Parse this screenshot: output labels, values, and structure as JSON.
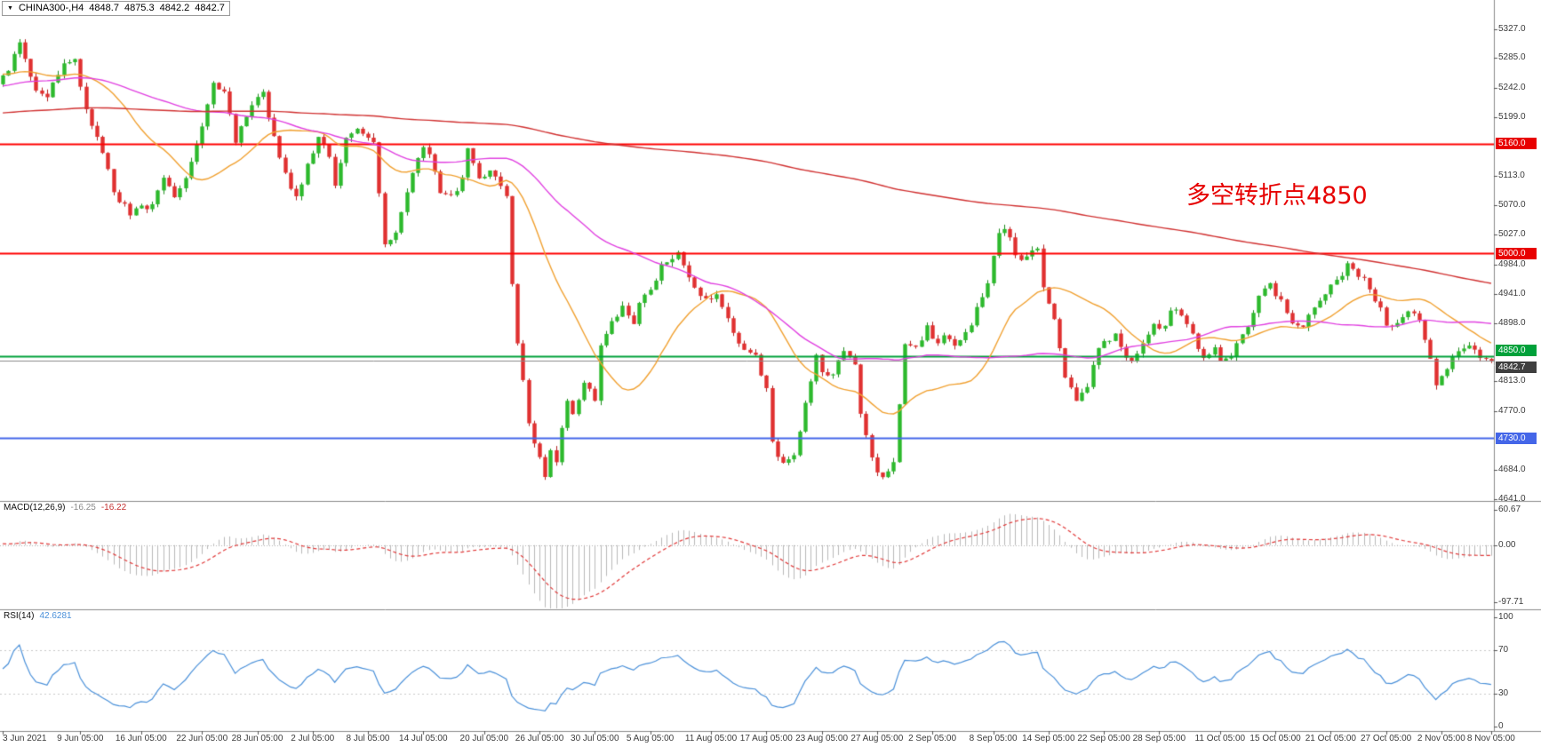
{
  "header": {
    "collapse_icon": "▼",
    "symbol": "CHINA300-,H4",
    "open": "4848.7",
    "high": "4875.3",
    "low": "4842.2",
    "close": "4842.7"
  },
  "annotation": {
    "text": "多空转折点4850",
    "color": "#e60000"
  },
  "chart_data": {
    "type": "candlestick",
    "symbol": "CHINA300-",
    "timeframe": "H4",
    "ohlc_display": {
      "open": 4848.7,
      "high": 4875.3,
      "low": 4842.2,
      "close": 4842.7
    },
    "y_axis": {
      "min": 4641,
      "max": 5327,
      "tick_labels": [
        "5327.0",
        "5285.0",
        "5242.0",
        "5199.0",
        "5113.0",
        "5070.0",
        "5027.0",
        "4984.0",
        "4941.0",
        "4898.0",
        "4813.0",
        "4770.0",
        "4684.0",
        "4641.0"
      ]
    },
    "levels": [
      {
        "price": 5160,
        "label": "5160.0",
        "color": "#ff0000",
        "badge_bg": "#e80000",
        "width": 2,
        "current": false
      },
      {
        "price": 5000,
        "label": "5000.0",
        "color": "#ff0000",
        "badge_bg": "#e80000",
        "width": 2,
        "current": false
      },
      {
        "price": 4850,
        "label": "4850.0",
        "color": "#00a13a",
        "badge_bg": "#00a13a",
        "width": 2,
        "current": false
      },
      {
        "price": 4730,
        "label": "4730.0",
        "color": "#4466e8",
        "badge_bg": "#4466e8",
        "width": 2,
        "current": false
      },
      {
        "price": 4842.7,
        "label": "4842.7",
        "color": "#8a8a8a",
        "badge_bg": "#3f3f3f",
        "width": 1,
        "current": true
      }
    ],
    "x_axis": {
      "labels": [
        {
          "t": "3 Jun 2021",
          "b": 0
        },
        {
          "t": "9 Jun 05:00",
          "b": 14
        },
        {
          "t": "16 Jun 05:00",
          "b": 25
        },
        {
          "t": "22 Jun 05:00",
          "b": 36
        },
        {
          "t": "28 Jun 05:00",
          "b": 46
        },
        {
          "t": "2 Jul 05:00",
          "b": 56
        },
        {
          "t": "8 Jul 05:00",
          "b": 66
        },
        {
          "t": "14 Jul 05:00",
          "b": 76
        },
        {
          "t": "20 Jul 05:00",
          "b": 87
        },
        {
          "t": "26 Jul 05:00",
          "b": 97
        },
        {
          "t": "30 Jul 05:00",
          "b": 107
        },
        {
          "t": "5 Aug 05:00",
          "b": 117
        },
        {
          "t": "11 Aug 05:00",
          "b": 128
        },
        {
          "t": "17 Aug 05:00",
          "b": 138
        },
        {
          "t": "23 Aug 05:00",
          "b": 148
        },
        {
          "t": "27 Aug 05:00",
          "b": 158
        },
        {
          "t": "2 Sep 05:00",
          "b": 168
        },
        {
          "t": "8 Sep 05:00",
          "b": 179
        },
        {
          "t": "14 Sep 05:00",
          "b": 189
        },
        {
          "t": "22 Sep 05:00",
          "b": 199
        },
        {
          "t": "28 Sep 05:00",
          "b": 209
        },
        {
          "t": "11 Oct 05:00",
          "b": 220
        },
        {
          "t": "15 Oct 05:00",
          "b": 230
        },
        {
          "t": "21 Oct 05:00",
          "b": 240
        },
        {
          "t": "27 Oct 05:00",
          "b": 250
        },
        {
          "t": "2 Nov 05:00",
          "b": 260
        },
        {
          "t": "8 Nov 05:00",
          "b": 269
        }
      ]
    },
    "bars_visible": 270,
    "history_bars": 260,
    "noise": {
      "seed": 9,
      "close_amp": 5.5,
      "wick_amp": 6.5
    },
    "price_path_anchors": [
      [
        -260,
        5120
      ],
      [
        -220,
        5200
      ],
      [
        -190,
        5260
      ],
      [
        -160,
        5180
      ],
      [
        -130,
        5150
      ],
      [
        -100,
        5230
      ],
      [
        -70,
        5180
      ],
      [
        -40,
        5240
      ],
      [
        -15,
        5270
      ],
      [
        -1,
        5250
      ],
      [
        0,
        5255
      ],
      [
        3,
        5305
      ],
      [
        6,
        5240
      ],
      [
        8,
        5230
      ],
      [
        11,
        5280
      ],
      [
        13,
        5285
      ],
      [
        15,
        5210
      ],
      [
        18,
        5150
      ],
      [
        20,
        5090
      ],
      [
        23,
        5060
      ],
      [
        27,
        5070
      ],
      [
        29,
        5110
      ],
      [
        31,
        5080
      ],
      [
        34,
        5130
      ],
      [
        36,
        5190
      ],
      [
        38,
        5245
      ],
      [
        40,
        5235
      ],
      [
        42,
        5165
      ],
      [
        45,
        5215
      ],
      [
        47,
        5235
      ],
      [
        50,
        5140
      ],
      [
        52,
        5090
      ],
      [
        53,
        5080
      ],
      [
        55,
        5130
      ],
      [
        57,
        5170
      ],
      [
        59,
        5140
      ],
      [
        60,
        5100
      ],
      [
        62,
        5170
      ],
      [
        64,
        5185
      ],
      [
        67,
        5160
      ],
      [
        68,
        5090
      ],
      [
        69,
        5010
      ],
      [
        71,
        5030
      ],
      [
        74,
        5120
      ],
      [
        76,
        5160
      ],
      [
        77,
        5150
      ],
      [
        79,
        5090
      ],
      [
        81,
        5080
      ],
      [
        83,
        5110
      ],
      [
        84,
        5150
      ],
      [
        86,
        5110
      ],
      [
        88,
        5120
      ],
      [
        90,
        5100
      ],
      [
        91,
        5085
      ],
      [
        92,
        4950
      ],
      [
        93,
        4870
      ],
      [
        95,
        4750
      ],
      [
        97,
        4700
      ],
      [
        98,
        4672
      ],
      [
        99,
        4710
      ],
      [
        100,
        4690
      ],
      [
        102,
        4790
      ],
      [
        103,
        4760
      ],
      [
        105,
        4810
      ],
      [
        107,
        4790
      ],
      [
        108,
        4870
      ],
      [
        110,
        4900
      ],
      [
        112,
        4920
      ],
      [
        114,
        4900
      ],
      [
        115,
        4930
      ],
      [
        117,
        4950
      ],
      [
        119,
        4980
      ],
      [
        122,
        5000
      ],
      [
        123,
        4980
      ],
      [
        125,
        4950
      ],
      [
        127,
        4930
      ],
      [
        129,
        4940
      ],
      [
        131,
        4910
      ],
      [
        132,
        4880
      ],
      [
        134,
        4860
      ],
      [
        136,
        4850
      ],
      [
        138,
        4800
      ],
      [
        139,
        4720
      ],
      [
        141,
        4690
      ],
      [
        143,
        4700
      ],
      [
        145,
        4780
      ],
      [
        147,
        4855
      ],
      [
        148,
        4830
      ],
      [
        150,
        4820
      ],
      [
        152,
        4860
      ],
      [
        154,
        4840
      ],
      [
        155,
        4770
      ],
      [
        157,
        4700
      ],
      [
        159,
        4668
      ],
      [
        161,
        4690
      ],
      [
        162,
        4780
      ],
      [
        163,
        4870
      ],
      [
        165,
        4860
      ],
      [
        167,
        4890
      ],
      [
        169,
        4870
      ],
      [
        171,
        4880
      ],
      [
        172,
        4860
      ],
      [
        174,
        4880
      ],
      [
        176,
        4920
      ],
      [
        178,
        4960
      ],
      [
        180,
        5030
      ],
      [
        181,
        5040
      ],
      [
        183,
        5000
      ],
      [
        185,
        4990
      ],
      [
        187,
        5010
      ],
      [
        188,
        4950
      ],
      [
        190,
        4900
      ],
      [
        192,
        4820
      ],
      [
        194,
        4790
      ],
      [
        196,
        4810
      ],
      [
        198,
        4860
      ],
      [
        201,
        4880
      ],
      [
        203,
        4850
      ],
      [
        204,
        4840
      ],
      [
        206,
        4870
      ],
      [
        208,
        4900
      ],
      [
        210,
        4890
      ],
      [
        211,
        4920
      ],
      [
        213,
        4910
      ],
      [
        215,
        4880
      ],
      [
        217,
        4850
      ],
      [
        219,
        4860
      ],
      [
        220,
        4840
      ],
      [
        222,
        4850
      ],
      [
        224,
        4880
      ],
      [
        226,
        4910
      ],
      [
        227,
        4940
      ],
      [
        229,
        4955
      ],
      [
        231,
        4930
      ],
      [
        233,
        4900
      ],
      [
        235,
        4890
      ],
      [
        236,
        4910
      ],
      [
        238,
        4930
      ],
      [
        240,
        4950
      ],
      [
        242,
        4970
      ],
      [
        243,
        4990
      ],
      [
        245,
        4970
      ],
      [
        247,
        4950
      ],
      [
        249,
        4920
      ],
      [
        250,
        4890
      ],
      [
        252,
        4900
      ],
      [
        254,
        4920
      ],
      [
        256,
        4900
      ],
      [
        258,
        4850
      ],
      [
        259,
        4810
      ],
      [
        261,
        4830
      ],
      [
        263,
        4860
      ],
      [
        265,
        4870
      ],
      [
        267,
        4850
      ],
      [
        268,
        4846
      ],
      [
        269,
        4842.7
      ]
    ],
    "moving_averages": [
      {
        "name": "ma-fast",
        "period": 21,
        "color": "#f0a030"
      },
      {
        "name": "ma-mid",
        "period": 60,
        "color": "#e040e0"
      },
      {
        "name": "ma-slow",
        "period": 260,
        "color": "#d03030"
      }
    ],
    "candle_colors": {
      "up_fill": "#2db92d",
      "up_stroke": "#1d8a1d",
      "down_fill": "#e03030",
      "down_stroke": "#b02020"
    },
    "macd": {
      "title": "MACD(12,26,9)",
      "value_main": "-16.25",
      "value_signal": "-16.22",
      "params": [
        12,
        26,
        9
      ],
      "axis_labels": [
        "60.67",
        "0.00",
        "-97.71"
      ],
      "scale": {
        "min": -100,
        "max": 63
      },
      "hist_color": "#b8b8b8",
      "signal_color": "#e03838"
    },
    "rsi": {
      "title": "RSI(14)",
      "value": "42.6281",
      "period": 14,
      "axis_labels": [
        "100",
        "70",
        "30",
        "0"
      ],
      "color": "#4a90d9",
      "guide_levels": [
        70,
        30
      ]
    }
  }
}
